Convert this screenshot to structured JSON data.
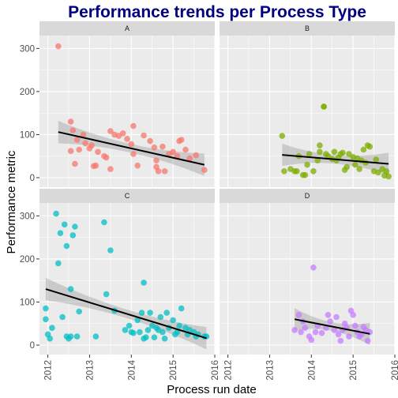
{
  "chart_data": {
    "type": "scatter",
    "title": "Performance trends per Process Type",
    "xlabel": "Process run date",
    "ylabel": "Performance metric",
    "x_ticks": [
      "2012",
      "2013",
      "2014",
      "2015",
      "2016"
    ],
    "x_range": [
      2011.8,
      2016.0
    ],
    "y_ticks": [
      "0",
      "100",
      "200",
      "300"
    ],
    "y_range": [
      -22,
      330
    ],
    "grid": true,
    "legend": "none",
    "colors": {
      "A": "#F8766D",
      "B": "#7CAE00",
      "C": "#00BFC4",
      "D": "#C77CFF"
    },
    "panels": [
      {
        "label": "A",
        "points": [
          [
            2012.25,
            305
          ],
          [
            2012.55,
            130
          ],
          [
            2012.6,
            110
          ],
          [
            2012.7,
            88
          ],
          [
            2012.55,
            62
          ],
          [
            2012.65,
            32
          ],
          [
            2012.75,
            65
          ],
          [
            2012.85,
            100
          ],
          [
            2012.9,
            80
          ],
          [
            2013.0,
            68
          ],
          [
            2013.05,
            75
          ],
          [
            2013.1,
            27
          ],
          [
            2013.15,
            28
          ],
          [
            2013.2,
            60
          ],
          [
            2013.35,
            50
          ],
          [
            2013.4,
            47
          ],
          [
            2013.5,
            20
          ],
          [
            2013.5,
            108
          ],
          [
            2013.6,
            100
          ],
          [
            2013.7,
            97
          ],
          [
            2013.8,
            103
          ],
          [
            2013.9,
            90
          ],
          [
            2014.0,
            78
          ],
          [
            2014.05,
            55
          ],
          [
            2014.05,
            120
          ],
          [
            2014.15,
            28
          ],
          [
            2014.3,
            98
          ],
          [
            2014.45,
            85
          ],
          [
            2014.55,
            70
          ],
          [
            2014.6,
            40
          ],
          [
            2014.6,
            25
          ],
          [
            2014.65,
            15
          ],
          [
            2014.75,
            72
          ],
          [
            2014.8,
            15
          ],
          [
            2014.9,
            55
          ],
          [
            2015.0,
            60
          ],
          [
            2015.1,
            50
          ],
          [
            2015.15,
            85
          ],
          [
            2015.2,
            88
          ],
          [
            2015.3,
            65
          ],
          [
            2015.4,
            45
          ],
          [
            2015.55,
            52
          ],
          [
            2015.75,
            18
          ]
        ],
        "trend": [
          [
            2012.25,
            106
          ],
          [
            2015.75,
            30
          ]
        ]
      },
      {
        "label": "B",
        "points": [
          [
            2013.3,
            97
          ],
          [
            2013.35,
            15
          ],
          [
            2013.5,
            20
          ],
          [
            2013.6,
            15
          ],
          [
            2013.65,
            15
          ],
          [
            2013.7,
            50
          ],
          [
            2013.8,
            6
          ],
          [
            2013.85,
            6
          ],
          [
            2013.9,
            30
          ],
          [
            2013.95,
            55
          ],
          [
            2014.05,
            15
          ],
          [
            2014.15,
            40
          ],
          [
            2014.2,
            60
          ],
          [
            2014.2,
            75
          ],
          [
            2014.3,
            165
          ],
          [
            2014.3,
            165
          ],
          [
            2014.35,
            55
          ],
          [
            2014.4,
            50
          ],
          [
            2014.5,
            43
          ],
          [
            2014.55,
            60
          ],
          [
            2014.6,
            40
          ],
          [
            2014.65,
            47
          ],
          [
            2014.7,
            55
          ],
          [
            2014.75,
            58
          ],
          [
            2014.8,
            18
          ],
          [
            2014.85,
            25
          ],
          [
            2014.9,
            55
          ],
          [
            2015.0,
            48
          ],
          [
            2015.05,
            30
          ],
          [
            2015.1,
            45
          ],
          [
            2015.15,
            20
          ],
          [
            2015.2,
            40
          ],
          [
            2015.25,
            65
          ],
          [
            2015.3,
            35
          ],
          [
            2015.35,
            75
          ],
          [
            2015.4,
            72
          ],
          [
            2015.5,
            15
          ],
          [
            2015.55,
            42
          ],
          [
            2015.6,
            12
          ],
          [
            2015.7,
            20
          ],
          [
            2015.75,
            5
          ],
          [
            2015.8,
            15
          ],
          [
            2015.85,
            3
          ]
        ],
        "trend": [
          [
            2013.3,
            53
          ],
          [
            2015.85,
            32
          ]
        ]
      },
      {
        "label": "C",
        "points": [
          [
            2011.95,
            85
          ],
          [
            2011.95,
            60
          ],
          [
            2012.0,
            25
          ],
          [
            2012.05,
            15
          ],
          [
            2012.1,
            40
          ],
          [
            2012.2,
            305
          ],
          [
            2012.25,
            190
          ],
          [
            2012.3,
            260
          ],
          [
            2012.35,
            65
          ],
          [
            2012.4,
            280
          ],
          [
            2012.45,
            230
          ],
          [
            2012.45,
            20
          ],
          [
            2012.5,
            15
          ],
          [
            2012.55,
            130
          ],
          [
            2012.55,
            20
          ],
          [
            2012.6,
            255
          ],
          [
            2012.65,
            275
          ],
          [
            2012.7,
            20
          ],
          [
            2012.75,
            78
          ],
          [
            2013.15,
            20
          ],
          [
            2013.35,
            285
          ],
          [
            2013.4,
            118
          ],
          [
            2013.5,
            220
          ],
          [
            2013.6,
            80
          ],
          [
            2013.85,
            35
          ],
          [
            2013.95,
            45
          ],
          [
            2014.0,
            30
          ],
          [
            2014.05,
            28
          ],
          [
            2014.15,
            58
          ],
          [
            2014.2,
            30
          ],
          [
            2014.25,
            75
          ],
          [
            2014.3,
            15
          ],
          [
            2014.3,
            145
          ],
          [
            2014.35,
            18
          ],
          [
            2014.4,
            35
          ],
          [
            2014.45,
            75
          ],
          [
            2014.5,
            45
          ],
          [
            2014.55,
            18
          ],
          [
            2014.6,
            40
          ],
          [
            2014.65,
            35
          ],
          [
            2014.7,
            65
          ],
          [
            2014.75,
            30
          ],
          [
            2014.8,
            15
          ],
          [
            2014.85,
            75
          ],
          [
            2014.9,
            40
          ],
          [
            2015.0,
            58
          ],
          [
            2015.05,
            25
          ],
          [
            2015.1,
            30
          ],
          [
            2015.15,
            45
          ],
          [
            2015.2,
            85
          ],
          [
            2015.3,
            40
          ],
          [
            2015.35,
            25
          ],
          [
            2015.4,
            35
          ],
          [
            2015.5,
            30
          ],
          [
            2015.55,
            20
          ],
          [
            2015.6,
            25
          ],
          [
            2015.75,
            20
          ],
          [
            2015.8,
            20
          ]
        ],
        "trend": [
          [
            2011.95,
            130
          ],
          [
            2015.8,
            16
          ]
        ]
      },
      {
        "label": "D",
        "points": [
          [
            2013.6,
            35
          ],
          [
            2013.7,
            70
          ],
          [
            2013.75,
            30
          ],
          [
            2013.8,
            55
          ],
          [
            2013.85,
            40
          ],
          [
            2013.95,
            20
          ],
          [
            2014.0,
            12
          ],
          [
            2014.05,
            180
          ],
          [
            2014.1,
            30
          ],
          [
            2014.15,
            45
          ],
          [
            2014.25,
            28
          ],
          [
            2014.35,
            40
          ],
          [
            2014.4,
            70
          ],
          [
            2014.45,
            55
          ],
          [
            2014.55,
            35
          ],
          [
            2014.6,
            65
          ],
          [
            2014.65,
            25
          ],
          [
            2014.7,
            10
          ],
          [
            2014.75,
            35
          ],
          [
            2014.8,
            50
          ],
          [
            2014.85,
            40
          ],
          [
            2014.9,
            20
          ],
          [
            2014.95,
            80
          ],
          [
            2015.0,
            70
          ],
          [
            2015.05,
            45
          ],
          [
            2015.1,
            30
          ],
          [
            2015.15,
            20
          ],
          [
            2015.2,
            25
          ],
          [
            2015.25,
            42
          ],
          [
            2015.3,
            35
          ],
          [
            2015.35,
            10
          ],
          [
            2015.4,
            30
          ]
        ],
        "trend": [
          [
            2013.6,
            60
          ],
          [
            2015.4,
            26
          ]
        ]
      }
    ]
  }
}
